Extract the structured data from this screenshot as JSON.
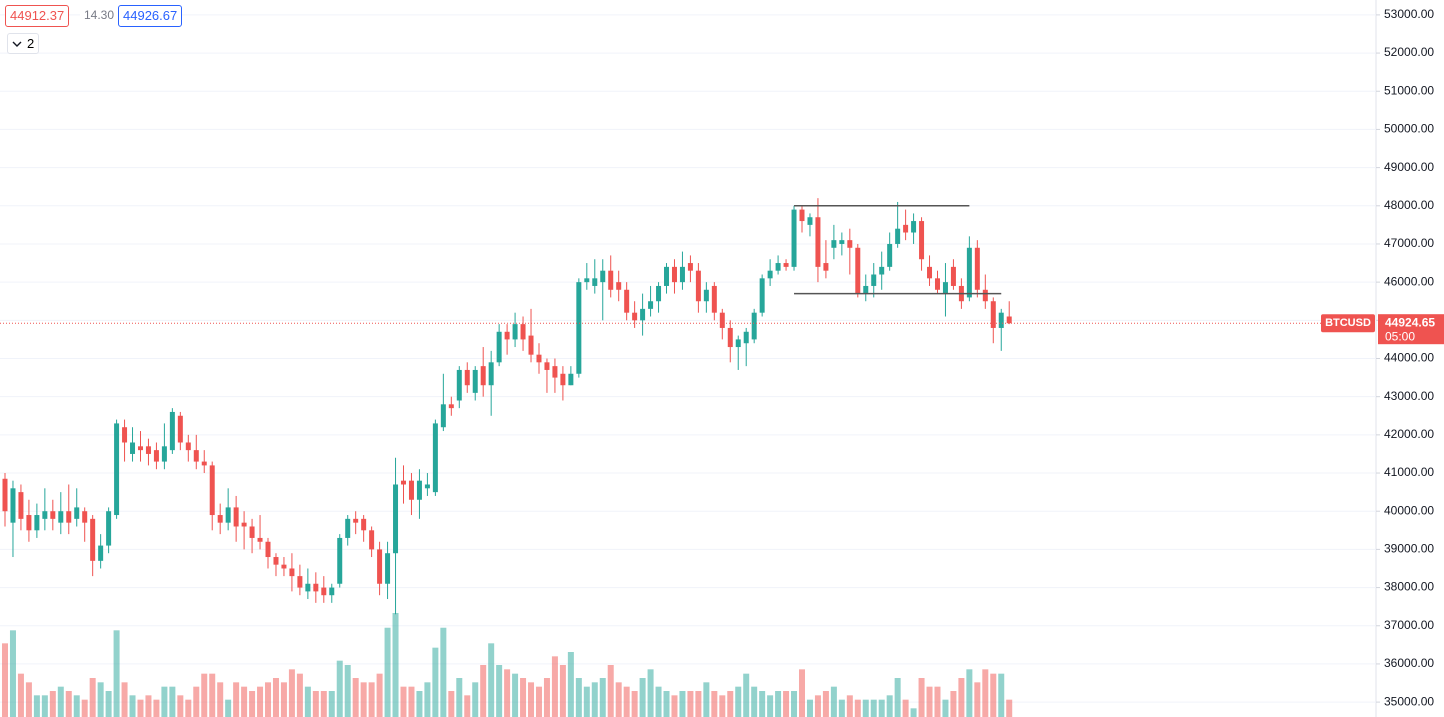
{
  "header": {
    "bid": "44912.37",
    "spread": "14.30",
    "ask": "44926.67",
    "indicators": "2"
  },
  "chart_data": {
    "type": "candlestick",
    "symbol": "BTCUSD",
    "last_price": 44924.65,
    "countdown": "05:00",
    "ylim": [
      34610,
      53390
    ],
    "yticks": [
      {
        "value": 35000,
        "label": "35000.00"
      },
      {
        "value": 36000,
        "label": "36000.00"
      },
      {
        "value": 37000,
        "label": "37000.00"
      },
      {
        "value": 38000,
        "label": "38000.00"
      },
      {
        "value": 39000,
        "label": "39000.00"
      },
      {
        "value": 40000,
        "label": "40000.00"
      },
      {
        "value": 41000,
        "label": "41000.00"
      },
      {
        "value": 42000,
        "label": "42000.00"
      },
      {
        "value": 43000,
        "label": "43000.00"
      },
      {
        "value": 44000,
        "label": "44000.00"
      },
      {
        "value": 45000,
        "label": "45000.00"
      },
      {
        "value": 46000,
        "label": "46000.00"
      },
      {
        "value": 47000,
        "label": "47000.00"
      },
      {
        "value": 48000,
        "label": "48000.00"
      },
      {
        "value": 49000,
        "label": "49000.00"
      },
      {
        "value": 50000,
        "label": "50000.00"
      },
      {
        "value": 51000,
        "label": "51000.00"
      },
      {
        "value": 52000,
        "label": "52000.00"
      },
      {
        "value": 53000,
        "label": "53000.00"
      }
    ],
    "grid": true,
    "up_color": "#26a69a",
    "down_color": "#ef5350",
    "line_color": "#555555",
    "candles": [
      [
        40850,
        41000,
        39600,
        40000
      ],
      [
        39700,
        40800,
        38800,
        40600
      ],
      [
        40500,
        40700,
        39500,
        39800
      ],
      [
        39900,
        40300,
        39200,
        39500
      ],
      [
        39500,
        40200,
        39300,
        39900
      ],
      [
        39800,
        40600,
        39500,
        40000
      ],
      [
        40000,
        40300,
        39500,
        39800
      ],
      [
        39700,
        40500,
        39400,
        40000
      ],
      [
        40000,
        40700,
        39400,
        39700
      ],
      [
        39800,
        40600,
        39600,
        40100
      ],
      [
        40000,
        40100,
        39200,
        39700
      ],
      [
        39800,
        39900,
        38300,
        38700
      ],
      [
        38700,
        39400,
        38500,
        39100
      ],
      [
        39100,
        40100,
        38900,
        40000
      ],
      [
        39900,
        42400,
        39800,
        42300
      ],
      [
        42200,
        42400,
        41300,
        41800
      ],
      [
        41500,
        42200,
        41300,
        41800
      ],
      [
        41700,
        42100,
        41300,
        41600
      ],
      [
        41700,
        41900,
        41200,
        41500
      ],
      [
        41600,
        41800,
        41100,
        41300
      ],
      [
        41300,
        42300,
        41100,
        41700
      ],
      [
        41600,
        42700,
        41500,
        42600
      ],
      [
        42500,
        42600,
        41600,
        41800
      ],
      [
        41800,
        42000,
        41300,
        41600
      ],
      [
        41600,
        42000,
        41100,
        41300
      ],
      [
        41300,
        41600,
        41000,
        41200
      ],
      [
        41200,
        41300,
        39500,
        39900
      ],
      [
        39900,
        40200,
        39400,
        39700
      ],
      [
        39700,
        40600,
        39500,
        40100
      ],
      [
        40100,
        40400,
        39200,
        39600
      ],
      [
        39700,
        40000,
        39000,
        39600
      ],
      [
        39600,
        39800,
        38900,
        39300
      ],
      [
        39300,
        39900,
        39000,
        39200
      ],
      [
        39200,
        39300,
        38500,
        38800
      ],
      [
        38800,
        38900,
        38300,
        38600
      ],
      [
        38600,
        38800,
        38300,
        38500
      ],
      [
        38500,
        38900,
        37900,
        38300
      ],
      [
        38300,
        38600,
        37800,
        38000
      ],
      [
        37900,
        38500,
        37700,
        38100
      ],
      [
        38100,
        38400,
        37600,
        37900
      ],
      [
        38000,
        38300,
        37600,
        37800
      ],
      [
        37800,
        38100,
        37600,
        38000
      ],
      [
        38100,
        39400,
        38000,
        39300
      ],
      [
        39300,
        39900,
        39100,
        39800
      ],
      [
        39800,
        40000,
        39400,
        39700
      ],
      [
        39800,
        39900,
        39200,
        39500
      ],
      [
        39500,
        39600,
        38800,
        39000
      ],
      [
        39000,
        39200,
        37800,
        38100
      ],
      [
        38100,
        39200,
        37700,
        38900
      ],
      [
        38900,
        41400,
        37300,
        40700
      ],
      [
        40800,
        41200,
        40200,
        40700
      ],
      [
        40800,
        41000,
        39900,
        40300
      ],
      [
        40300,
        41100,
        39800,
        40800
      ],
      [
        40600,
        41000,
        40400,
        40700
      ],
      [
        40500,
        42400,
        40400,
        42300
      ],
      [
        42200,
        43600,
        42100,
        42800
      ],
      [
        42800,
        43000,
        42500,
        42700
      ],
      [
        42900,
        43800,
        42700,
        43700
      ],
      [
        43700,
        43900,
        43100,
        43300
      ],
      [
        43100,
        43800,
        42900,
        43700
      ],
      [
        43800,
        44300,
        43000,
        43300
      ],
      [
        43300,
        44200,
        42500,
        43900
      ],
      [
        43900,
        44900,
        43800,
        44700
      ],
      [
        44700,
        44900,
        44100,
        44500
      ],
      [
        44500,
        45200,
        44300,
        44900
      ],
      [
        44900,
        45100,
        44200,
        44500
      ],
      [
        44600,
        45300,
        43900,
        44100
      ],
      [
        44100,
        44400,
        43600,
        43900
      ],
      [
        43900,
        44000,
        43100,
        43700
      ],
      [
        43800,
        44000,
        43100,
        43500
      ],
      [
        43600,
        43800,
        42900,
        43300
      ],
      [
        43300,
        43800,
        43300,
        43600
      ],
      [
        43600,
        46100,
        43500,
        46000
      ],
      [
        46000,
        46500,
        45800,
        46100
      ],
      [
        45900,
        46600,
        45700,
        46100
      ],
      [
        46000,
        46600,
        45000,
        46300
      ],
      [
        46300,
        46700,
        45600,
        45800
      ],
      [
        46000,
        46300,
        45500,
        45800
      ],
      [
        45800,
        46000,
        45000,
        45200
      ],
      [
        45200,
        45500,
        44800,
        45000
      ],
      [
        45000,
        45700,
        44600,
        45300
      ],
      [
        45300,
        45900,
        45100,
        45500
      ],
      [
        45500,
        46000,
        45200,
        45900
      ],
      [
        45900,
        46500,
        45700,
        46400
      ],
      [
        46400,
        46600,
        45700,
        46000
      ],
      [
        46000,
        46800,
        45800,
        46400
      ],
      [
        46500,
        46700,
        46000,
        46300
      ],
      [
        46300,
        46500,
        45200,
        45500
      ],
      [
        45500,
        46000,
        45200,
        45800
      ],
      [
        45900,
        46000,
        45000,
        45200
      ],
      [
        45200,
        45300,
        44500,
        44800
      ],
      [
        44800,
        45000,
        43900,
        44300
      ],
      [
        44300,
        44600,
        43700,
        44500
      ],
      [
        44400,
        44800,
        43800,
        44700
      ],
      [
        44500,
        45300,
        44400,
        45200
      ],
      [
        45200,
        46200,
        45100,
        46100
      ],
      [
        46100,
        46600,
        45900,
        46300
      ],
      [
        46300,
        46700,
        46200,
        46500
      ],
      [
        46500,
        46600,
        46300,
        46400
      ],
      [
        46400,
        48000,
        46300,
        47900
      ],
      [
        47900,
        48000,
        47300,
        47600
      ],
      [
        47500,
        47800,
        47200,
        47700
      ],
      [
        47700,
        48200,
        46000,
        46400
      ],
      [
        46500,
        47100,
        46100,
        46300
      ],
      [
        46900,
        47500,
        46600,
        47100
      ],
      [
        47000,
        47300,
        46700,
        47100
      ],
      [
        47100,
        47400,
        46200,
        46900
      ],
      [
        46900,
        47000,
        45600,
        45700
      ],
      [
        45700,
        46200,
        45500,
        45900
      ],
      [
        45900,
        46500,
        45600,
        46200
      ],
      [
        46200,
        46800,
        45800,
        46400
      ],
      [
        46400,
        47300,
        46300,
        47000
      ],
      [
        47000,
        48100,
        46900,
        47400
      ],
      [
        47500,
        47900,
        47100,
        47300
      ],
      [
        47300,
        47800,
        47000,
        47600
      ],
      [
        47600,
        47700,
        46300,
        46600
      ],
      [
        46400,
        46700,
        45900,
        46100
      ],
      [
        46100,
        46300,
        45700,
        45800
      ],
      [
        45700,
        46500,
        45100,
        46000
      ],
      [
        46400,
        46600,
        45800,
        45900
      ],
      [
        45900,
        46100,
        45300,
        45500
      ],
      [
        45600,
        47200,
        45500,
        46900
      ],
      [
        46900,
        47100,
        45600,
        45800
      ],
      [
        45800,
        46200,
        45300,
        45500
      ],
      [
        45500,
        45600,
        44400,
        44800
      ],
      [
        44800,
        45300,
        44200,
        45200
      ],
      [
        45100,
        45500,
        44900,
        44924.65
      ]
    ],
    "volume": [
      85,
      100,
      50,
      40,
      25,
      25,
      30,
      35,
      30,
      25,
      20,
      45,
      40,
      30,
      100,
      40,
      25,
      20,
      25,
      20,
      35,
      35,
      25,
      20,
      35,
      50,
      50,
      40,
      20,
      40,
      35,
      30,
      35,
      40,
      45,
      40,
      55,
      50,
      35,
      30,
      30,
      30,
      65,
      60,
      45,
      40,
      40,
      50,
      103,
      120,
      35,
      35,
      30,
      40,
      80,
      103,
      30,
      45,
      25,
      40,
      60,
      85,
      60,
      55,
      50,
      45,
      40,
      35,
      45,
      70,
      60,
      75,
      45,
      35,
      40,
      45,
      60,
      40,
      35,
      30,
      45,
      55,
      35,
      30,
      25,
      30,
      30,
      30,
      40,
      30,
      25,
      30,
      35,
      50,
      35,
      30,
      25,
      30,
      30,
      30,
      55,
      20,
      25,
      30,
      35,
      20,
      25,
      20,
      20,
      20,
      20,
      25,
      45,
      20,
      10,
      45,
      35,
      35,
      20,
      30,
      45,
      55,
      40,
      55,
      50,
      50,
      20
    ],
    "levels": [
      {
        "value": 48000,
        "from": 99,
        "to": 121
      },
      {
        "value": 45700,
        "from": 99,
        "to": 125
      }
    ]
  }
}
